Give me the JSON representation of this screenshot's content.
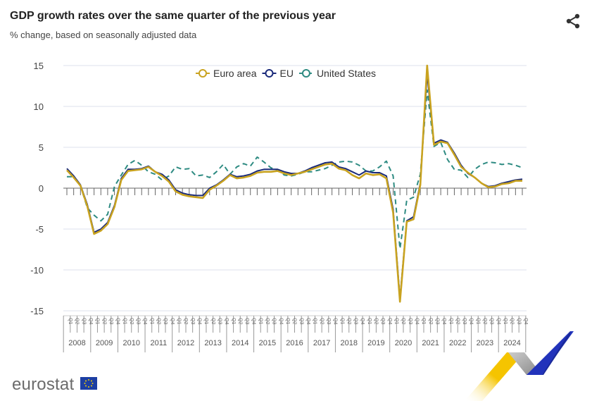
{
  "header": {
    "title": "GDP growth rates over the same quarter of the previous year",
    "subtitle": "% change, based on seasonally adjusted data",
    "share_icon": "share-icon"
  },
  "footer": {
    "logo": "eurostat"
  },
  "colors": {
    "euro_area": "#c9a320",
    "eu": "#1a2a7a",
    "us": "#2e8b82",
    "grid": "#dde1ec",
    "axis": "#666666"
  },
  "chart_data": {
    "type": "line",
    "title": "GDP growth rates over the same quarter of the previous year",
    "subtitle": "% change, based on seasonally adjusted data",
    "ylim": [
      -15,
      15
    ],
    "yticks": [
      15,
      10,
      5,
      0,
      -5,
      -10,
      -15
    ],
    "grid": true,
    "legend": "top-center",
    "quarters": [
      "Q1",
      "Q2",
      "Q3",
      "Q4"
    ],
    "years": [
      "2008",
      "2009",
      "2010",
      "2011",
      "2012",
      "2013",
      "2014",
      "2015",
      "2016",
      "2017",
      "2018",
      "2019",
      "2020",
      "2021",
      "2022",
      "2023",
      "2024"
    ],
    "series": [
      {
        "name": "Euro area",
        "color": "#c9a320",
        "dash": false,
        "values": [
          2.2,
          1.3,
          0.3,
          -2.2,
          -5.6,
          -5.2,
          -4.4,
          -2.3,
          1.0,
          2.1,
          2.2,
          2.3,
          2.6,
          2.0,
          1.5,
          0.8,
          -0.4,
          -0.8,
          -1.0,
          -1.1,
          -1.2,
          -0.2,
          0.3,
          0.9,
          1.6,
          1.2,
          1.3,
          1.5,
          1.9,
          2.0,
          2.0,
          2.1,
          1.8,
          1.6,
          1.8,
          2.0,
          2.3,
          2.6,
          2.9,
          3.0,
          2.4,
          2.2,
          1.6,
          1.2,
          1.8,
          1.6,
          1.7,
          1.2,
          -3.0,
          -13.9,
          -4.1,
          -3.8,
          0.4,
          15.0,
          5.3,
          5.7,
          5.5,
          4.1,
          2.6,
          1.9,
          1.3,
          0.6,
          0.1,
          0.2,
          0.5,
          0.6,
          0.9,
          0.9
        ]
      },
      {
        "name": "EU",
        "color": "#1a2a7a",
        "dash": false,
        "values": [
          2.4,
          1.5,
          0.4,
          -2.0,
          -5.4,
          -5.0,
          -4.2,
          -2.1,
          1.2,
          2.3,
          2.3,
          2.4,
          2.7,
          2.0,
          1.7,
          1.0,
          -0.2,
          -0.6,
          -0.8,
          -0.9,
          -0.9,
          0.0,
          0.4,
          1.0,
          1.7,
          1.4,
          1.5,
          1.7,
          2.1,
          2.3,
          2.3,
          2.3,
          2.0,
          1.8,
          1.8,
          2.1,
          2.5,
          2.8,
          3.1,
          3.2,
          2.6,
          2.4,
          2.0,
          1.6,
          2.1,
          1.9,
          1.9,
          1.5,
          -2.6,
          -13.5,
          -4.0,
          -3.5,
          0.6,
          14.0,
          5.5,
          5.9,
          5.6,
          4.3,
          2.8,
          1.8,
          1.3,
          0.6,
          0.2,
          0.3,
          0.6,
          0.8,
          1.0,
          1.1
        ]
      },
      {
        "name": "United States",
        "color": "#2e8b82",
        "dash": true,
        "values": [
          1.4,
          1.4,
          0.3,
          -2.4,
          -3.3,
          -4.0,
          -3.2,
          0.2,
          1.6,
          2.9,
          3.4,
          2.8,
          2.0,
          1.7,
          1.0,
          1.5,
          2.6,
          2.3,
          2.4,
          1.5,
          1.6,
          1.3,
          2.0,
          2.9,
          1.7,
          2.6,
          3.0,
          2.7,
          3.8,
          3.2,
          2.5,
          2.2,
          1.6,
          1.5,
          1.7,
          2.0,
          2.0,
          2.2,
          2.4,
          2.8,
          3.2,
          3.3,
          3.2,
          2.8,
          2.1,
          2.1,
          2.6,
          3.3,
          1.5,
          -7.4,
          -1.5,
          -1.1,
          1.7,
          12.0,
          5.1,
          5.6,
          3.5,
          2.3,
          2.2,
          1.3,
          2.3,
          2.9,
          3.2,
          3.1,
          2.9,
          3.0,
          2.8,
          2.5
        ]
      }
    ]
  }
}
